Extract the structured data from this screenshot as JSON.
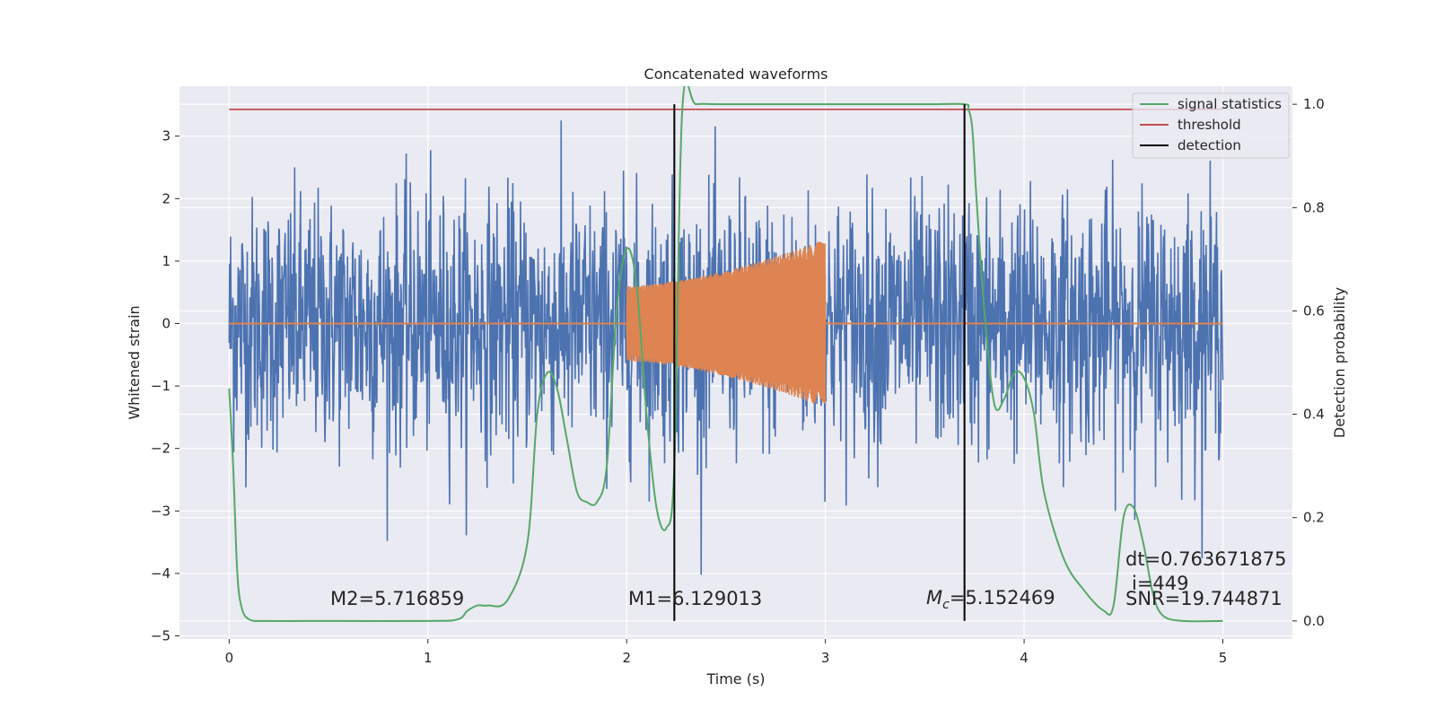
{
  "chart_data": {
    "type": "line",
    "title": "Concatenated waveforms",
    "xlabel": "Time (s)",
    "ylabel": "Whitened strain",
    "ylabel_right": "Detection probability",
    "xlim": [
      -0.25,
      5.35
    ],
    "ylim": [
      -5.05,
      3.8
    ],
    "ylim_right": [
      -0.035,
      1.035
    ],
    "x_ticks": [
      0,
      1,
      2,
      3,
      4,
      5
    ],
    "y_ticks": [
      -5,
      -4,
      -3,
      -2,
      -1,
      0,
      1,
      2,
      3
    ],
    "y_ticks_right": [
      0.0,
      0.2,
      0.4,
      0.6,
      0.8,
      1.0
    ],
    "x_tick_labels": [
      "0",
      "1",
      "2",
      "3",
      "4",
      "5"
    ],
    "y_tick_labels": [
      "−5",
      "−4",
      "−3",
      "−2",
      "−1",
      "0",
      "1",
      "2",
      "3"
    ],
    "y_tick_labels_right": [
      "0.0",
      "0.2",
      "0.4",
      "0.6",
      "0.8",
      "1.0"
    ],
    "grid": true,
    "legend_position": "top-right",
    "colors": {
      "noise": "#4c72b0",
      "injection": "#dd8452",
      "signal_statistics": "#55a868",
      "threshold": "#c44e52",
      "detection": "#000000",
      "background": "#eaeaf2",
      "grid": "#ffffff"
    },
    "series": [
      {
        "name": "noise",
        "axis": "left",
        "x_range": [
          0,
          5
        ],
        "typical_amplitude": 1.0,
        "max_value": 3.25,
        "min_value": -4.6
      },
      {
        "name": "injection",
        "axis": "left",
        "x_range": [
          2.0,
          3.0
        ],
        "start_amplitude": 0.6,
        "end_amplitude": 1.35,
        "baseline": 0
      },
      {
        "name": "signal statistics",
        "axis": "right",
        "x": [
          0,
          0.02,
          0.04,
          0.06,
          0.1,
          0.2,
          0.5,
          1.0,
          1.15,
          1.2,
          1.25,
          1.3,
          1.4,
          1.5,
          1.55,
          1.6,
          1.65,
          1.7,
          1.75,
          1.8,
          1.85,
          1.9,
          1.95,
          2.0,
          2.05,
          2.1,
          2.15,
          2.2,
          2.24,
          2.28,
          2.35,
          2.5,
          3.0,
          3.5,
          3.7,
          3.72,
          3.74,
          3.76,
          3.8,
          3.85,
          3.9,
          3.95,
          4.0,
          4.05,
          4.1,
          4.2,
          4.3,
          4.4,
          4.45,
          4.5,
          4.55,
          4.6,
          4.65,
          4.7,
          4.8,
          5.0
        ],
        "y": [
          0.45,
          0.3,
          0.1,
          0.03,
          0.003,
          0.0,
          0.0,
          0.0,
          0.003,
          0.02,
          0.03,
          0.03,
          0.04,
          0.15,
          0.4,
          0.48,
          0.45,
          0.35,
          0.25,
          0.23,
          0.23,
          0.3,
          0.6,
          0.72,
          0.65,
          0.4,
          0.22,
          0.18,
          0.3,
          0.99,
          1.0,
          1.0,
          1.0,
          1.0,
          1.0,
          0.99,
          0.95,
          0.82,
          0.6,
          0.42,
          0.43,
          0.48,
          0.47,
          0.4,
          0.25,
          0.12,
          0.06,
          0.02,
          0.03,
          0.2,
          0.22,
          0.15,
          0.05,
          0.01,
          0.0,
          0.0
        ]
      },
      {
        "name": "threshold",
        "axis": "right",
        "x": [
          0,
          5
        ],
        "y": [
          0.99,
          0.99
        ]
      },
      {
        "name": "detection",
        "axis": "right",
        "type": "vline",
        "x": [
          2.24,
          3.7
        ],
        "y_range": [
          0,
          1.0
        ]
      }
    ],
    "legend": [
      {
        "label": "signal statistics",
        "color": "#55a868"
      },
      {
        "label": "threshold",
        "color": "#c44e52"
      },
      {
        "label": "detection",
        "color": "#000000"
      }
    ],
    "annotations": {
      "m2": "M2=5.716859",
      "m1": "M1=6.129013",
      "mc_symbol": "M",
      "mc_sub": "c",
      "mc_value": "=5.152469",
      "dt": "dt=0.763671875",
      "i": "i=449",
      "snr": "SNR=19.744871"
    }
  }
}
